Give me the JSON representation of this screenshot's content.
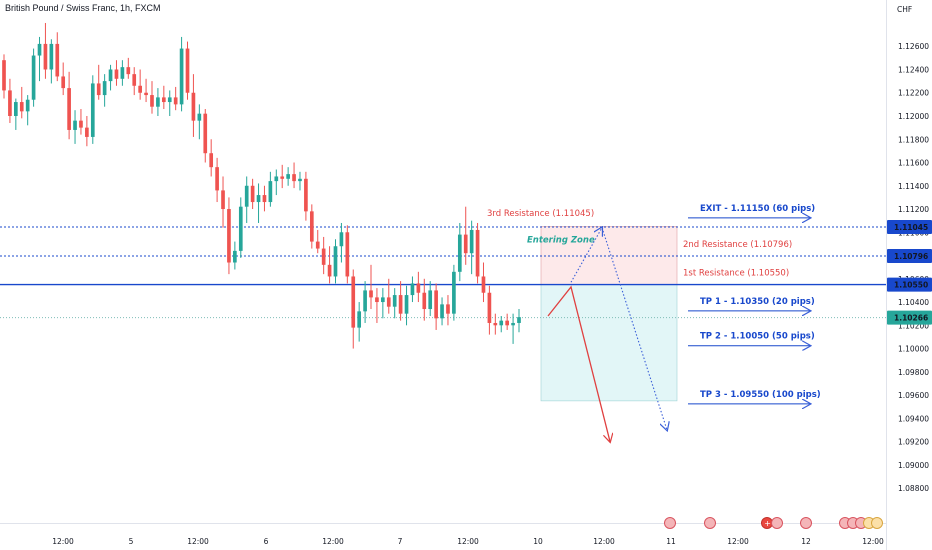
{
  "header": {
    "title": "British Pound / Swiss Franc, 1h, FXCM",
    "currency": "CHF"
  },
  "chart_data": {
    "type": "candlestick",
    "title": "British Pound / Swiss Franc, 1h, FXCM",
    "y_unit": "CHF",
    "ylim": [
      1.0856,
      1.1286
    ],
    "y_ticks": [
      "1.12600",
      "1.12400",
      "1.12200",
      "1.12000",
      "1.11800",
      "1.11600",
      "1.11400",
      "1.11200",
      "1.11000",
      "1.10800",
      "1.10600",
      "1.10400",
      "1.10200",
      "1.10000",
      "1.09800",
      "1.09600",
      "1.09400",
      "1.09200",
      "1.09000",
      "1.08800"
    ],
    "x_ticks": [
      "12:00",
      "5",
      "12:00",
      "6",
      "12:00",
      "7",
      "12:00",
      "10",
      "12:00",
      "11",
      "12:00",
      "12",
      "12:00"
    ],
    "colors": {
      "up": "#26a69a",
      "down": "#ef5350",
      "level_line": "#1848cc",
      "resistance_line": "#1848cc",
      "resistance_text": "#e04040",
      "target_text": "#1848cc",
      "entering_zone": "#26a69a",
      "sell_zone": "#fde9ea",
      "buy_zone": "#e2f6f7"
    },
    "candles": [
      {
        "o": 1.1248,
        "h": 1.1253,
        "l": 1.1215,
        "c": 1.1222
      },
      {
        "o": 1.1222,
        "h": 1.1232,
        "l": 1.1194,
        "c": 1.12
      },
      {
        "o": 1.12,
        "h": 1.1215,
        "l": 1.1188,
        "c": 1.1212
      },
      {
        "o": 1.1212,
        "h": 1.1225,
        "l": 1.1198,
        "c": 1.1204
      },
      {
        "o": 1.1204,
        "h": 1.1218,
        "l": 1.1192,
        "c": 1.1214
      },
      {
        "o": 1.1214,
        "h": 1.1258,
        "l": 1.1208,
        "c": 1.1252
      },
      {
        "o": 1.1252,
        "h": 1.1268,
        "l": 1.123,
        "c": 1.1262
      },
      {
        "o": 1.1262,
        "h": 1.128,
        "l": 1.1232,
        "c": 1.124
      },
      {
        "o": 1.124,
        "h": 1.1266,
        "l": 1.1228,
        "c": 1.1262
      },
      {
        "o": 1.1262,
        "h": 1.1272,
        "l": 1.123,
        "c": 1.1234
      },
      {
        "o": 1.1234,
        "h": 1.1246,
        "l": 1.1218,
        "c": 1.1224
      },
      {
        "o": 1.1224,
        "h": 1.1238,
        "l": 1.118,
        "c": 1.1188
      },
      {
        "o": 1.1188,
        "h": 1.1205,
        "l": 1.1176,
        "c": 1.1196
      },
      {
        "o": 1.1196,
        "h": 1.1206,
        "l": 1.1184,
        "c": 1.119
      },
      {
        "o": 1.119,
        "h": 1.12,
        "l": 1.1174,
        "c": 1.1182
      },
      {
        "o": 1.1182,
        "h": 1.1235,
        "l": 1.1176,
        "c": 1.1228
      },
      {
        "o": 1.1228,
        "h": 1.1244,
        "l": 1.1214,
        "c": 1.1218
      },
      {
        "o": 1.1218,
        "h": 1.1236,
        "l": 1.1208,
        "c": 1.123
      },
      {
        "o": 1.123,
        "h": 1.1244,
        "l": 1.1222,
        "c": 1.124
      },
      {
        "o": 1.124,
        "h": 1.1248,
        "l": 1.1226,
        "c": 1.1232
      },
      {
        "o": 1.1232,
        "h": 1.1248,
        "l": 1.1226,
        "c": 1.1242
      },
      {
        "o": 1.1242,
        "h": 1.125,
        "l": 1.1232,
        "c": 1.1236
      },
      {
        "o": 1.1236,
        "h": 1.1242,
        "l": 1.1218,
        "c": 1.1226
      },
      {
        "o": 1.1226,
        "h": 1.124,
        "l": 1.1214,
        "c": 1.122
      },
      {
        "o": 1.122,
        "h": 1.1232,
        "l": 1.1212,
        "c": 1.1218
      },
      {
        "o": 1.1218,
        "h": 1.123,
        "l": 1.1202,
        "c": 1.1208
      },
      {
        "o": 1.1208,
        "h": 1.1224,
        "l": 1.12,
        "c": 1.1216
      },
      {
        "o": 1.1216,
        "h": 1.1226,
        "l": 1.1206,
        "c": 1.1212
      },
      {
        "o": 1.1212,
        "h": 1.1222,
        "l": 1.12,
        "c": 1.1216
      },
      {
        "o": 1.1216,
        "h": 1.1225,
        "l": 1.1205,
        "c": 1.121
      },
      {
        "o": 1.121,
        "h": 1.1268,
        "l": 1.1204,
        "c": 1.1258
      },
      {
        "o": 1.1258,
        "h": 1.1264,
        "l": 1.1214,
        "c": 1.122
      },
      {
        "o": 1.122,
        "h": 1.1236,
        "l": 1.1182,
        "c": 1.1196
      },
      {
        "o": 1.1196,
        "h": 1.121,
        "l": 1.118,
        "c": 1.1202
      },
      {
        "o": 1.1202,
        "h": 1.1206,
        "l": 1.116,
        "c": 1.1168
      },
      {
        "o": 1.1168,
        "h": 1.118,
        "l": 1.1148,
        "c": 1.1156
      },
      {
        "o": 1.1156,
        "h": 1.1164,
        "l": 1.1126,
        "c": 1.1136
      },
      {
        "o": 1.1136,
        "h": 1.1148,
        "l": 1.1104,
        "c": 1.112
      },
      {
        "o": 1.112,
        "h": 1.113,
        "l": 1.1064,
        "c": 1.1074
      },
      {
        "o": 1.1074,
        "h": 1.1092,
        "l": 1.1068,
        "c": 1.1084
      },
      {
        "o": 1.1084,
        "h": 1.113,
        "l": 1.1078,
        "c": 1.1122
      },
      {
        "o": 1.1122,
        "h": 1.1148,
        "l": 1.1108,
        "c": 1.114
      },
      {
        "o": 1.114,
        "h": 1.1146,
        "l": 1.112,
        "c": 1.1126
      },
      {
        "o": 1.1126,
        "h": 1.1142,
        "l": 1.1108,
        "c": 1.1132
      },
      {
        "o": 1.1132,
        "h": 1.114,
        "l": 1.1118,
        "c": 1.1126
      },
      {
        "o": 1.1126,
        "h": 1.1152,
        "l": 1.1122,
        "c": 1.1144
      },
      {
        "o": 1.1144,
        "h": 1.1154,
        "l": 1.1132,
        "c": 1.1148
      },
      {
        "o": 1.1148,
        "h": 1.1158,
        "l": 1.1138,
        "c": 1.1146
      },
      {
        "o": 1.1146,
        "h": 1.1156,
        "l": 1.114,
        "c": 1.115
      },
      {
        "o": 1.115,
        "h": 1.116,
        "l": 1.1138,
        "c": 1.1144
      },
      {
        "o": 1.1144,
        "h": 1.1152,
        "l": 1.1136,
        "c": 1.1146
      },
      {
        "o": 1.1146,
        "h": 1.1152,
        "l": 1.111,
        "c": 1.1118
      },
      {
        "o": 1.1118,
        "h": 1.1124,
        "l": 1.1086,
        "c": 1.1092
      },
      {
        "o": 1.1092,
        "h": 1.1102,
        "l": 1.1082,
        "c": 1.1086
      },
      {
        "o": 1.1086,
        "h": 1.1096,
        "l": 1.1064,
        "c": 1.1072
      },
      {
        "o": 1.1072,
        "h": 1.1088,
        "l": 1.1056,
        "c": 1.1062
      },
      {
        "o": 1.1062,
        "h": 1.1094,
        "l": 1.1056,
        "c": 1.1088
      },
      {
        "o": 1.1088,
        "h": 1.1108,
        "l": 1.1074,
        "c": 1.11
      },
      {
        "o": 1.11,
        "h": 1.1106,
        "l": 1.1056,
        "c": 1.1062
      },
      {
        "o": 1.1062,
        "h": 1.1068,
        "l": 1.1,
        "c": 1.1018
      },
      {
        "o": 1.1018,
        "h": 1.104,
        "l": 1.1006,
        "c": 1.1032
      },
      {
        "o": 1.1032,
        "h": 1.1058,
        "l": 1.1022,
        "c": 1.105
      },
      {
        "o": 1.105,
        "h": 1.1072,
        "l": 1.1034,
        "c": 1.1044
      },
      {
        "o": 1.1044,
        "h": 1.1052,
        "l": 1.1022,
        "c": 1.104
      },
      {
        "o": 1.104,
        "h": 1.1052,
        "l": 1.1026,
        "c": 1.1044
      },
      {
        "o": 1.1044,
        "h": 1.106,
        "l": 1.103,
        "c": 1.1036
      },
      {
        "o": 1.1036,
        "h": 1.1052,
        "l": 1.1026,
        "c": 1.1046
      },
      {
        "o": 1.1046,
        "h": 1.1058,
        "l": 1.1024,
        "c": 1.103
      },
      {
        "o": 1.103,
        "h": 1.1054,
        "l": 1.102,
        "c": 1.1046
      },
      {
        "o": 1.1046,
        "h": 1.1062,
        "l": 1.104,
        "c": 1.1056
      },
      {
        "o": 1.1056,
        "h": 1.1066,
        "l": 1.104,
        "c": 1.1048
      },
      {
        "o": 1.1048,
        "h": 1.106,
        "l": 1.1024,
        "c": 1.1034
      },
      {
        "o": 1.1034,
        "h": 1.1058,
        "l": 1.1028,
        "c": 1.105
      },
      {
        "o": 1.105,
        "h": 1.1056,
        "l": 1.1016,
        "c": 1.1026
      },
      {
        "o": 1.1026,
        "h": 1.1044,
        "l": 1.102,
        "c": 1.1038
      },
      {
        "o": 1.1038,
        "h": 1.1046,
        "l": 1.102,
        "c": 1.103
      },
      {
        "o": 1.103,
        "h": 1.1072,
        "l": 1.1024,
        "c": 1.1066
      },
      {
        "o": 1.1066,
        "h": 1.1108,
        "l": 1.1058,
        "c": 1.1098
      },
      {
        "o": 1.1098,
        "h": 1.1122,
        "l": 1.1072,
        "c": 1.1082
      },
      {
        "o": 1.1082,
        "h": 1.111,
        "l": 1.1064,
        "c": 1.1102
      },
      {
        "o": 1.1102,
        "h": 1.1108,
        "l": 1.1056,
        "c": 1.1062
      },
      {
        "o": 1.1062,
        "h": 1.1074,
        "l": 1.104,
        "c": 1.1048
      },
      {
        "o": 1.1048,
        "h": 1.1054,
        "l": 1.1012,
        "c": 1.1022
      },
      {
        "o": 1.1022,
        "h": 1.103,
        "l": 1.1012,
        "c": 1.102
      },
      {
        "o": 1.102,
        "h": 1.1028,
        "l": 1.1014,
        "c": 1.1024
      },
      {
        "o": 1.1024,
        "h": 1.103,
        "l": 1.1016,
        "c": 1.102
      },
      {
        "o": 1.102,
        "h": 1.103,
        "l": 1.1004,
        "c": 1.1022
      },
      {
        "o": 1.1022,
        "h": 1.1034,
        "l": 1.1014,
        "c": 1.1027
      }
    ],
    "levels": [
      {
        "name": "3rd Resistance",
        "price": 1.11045,
        "label": "1.11045",
        "style": "dotted"
      },
      {
        "name": "2nd Resistance",
        "price": 1.10796,
        "label": "1.10796",
        "style": "dotted"
      },
      {
        "name": "1st Resistance",
        "price": 1.1055,
        "label": "1.10550",
        "style": "solid"
      },
      {
        "name": "Last price",
        "price": 1.10266,
        "label": "1.10266",
        "style": "dotted-faint"
      }
    ],
    "annotations": {
      "r3": "3rd Resistance (1.11045)",
      "r2": "2nd Resistance (1.10796)",
      "r1": "1st Resistance (1.10550)",
      "entering_zone": "Entering Zone",
      "exit": "EXIT - 1.11150 (60 pips)",
      "tp1": "TP 1 - 1.10350 (20 pips)",
      "tp2": "TP 2 - 1.10050 (50 pips)",
      "tp3": "TP 3 - 1.09550 (100 pips)"
    },
    "zones": {
      "sell_top": 1.1105,
      "entry": 1.1055,
      "target_bottom": 1.0955
    },
    "target_levels": {
      "exit": 1.1115,
      "tp1": 1.1035,
      "tp2": 1.1005,
      "tp3": 1.0955
    }
  }
}
